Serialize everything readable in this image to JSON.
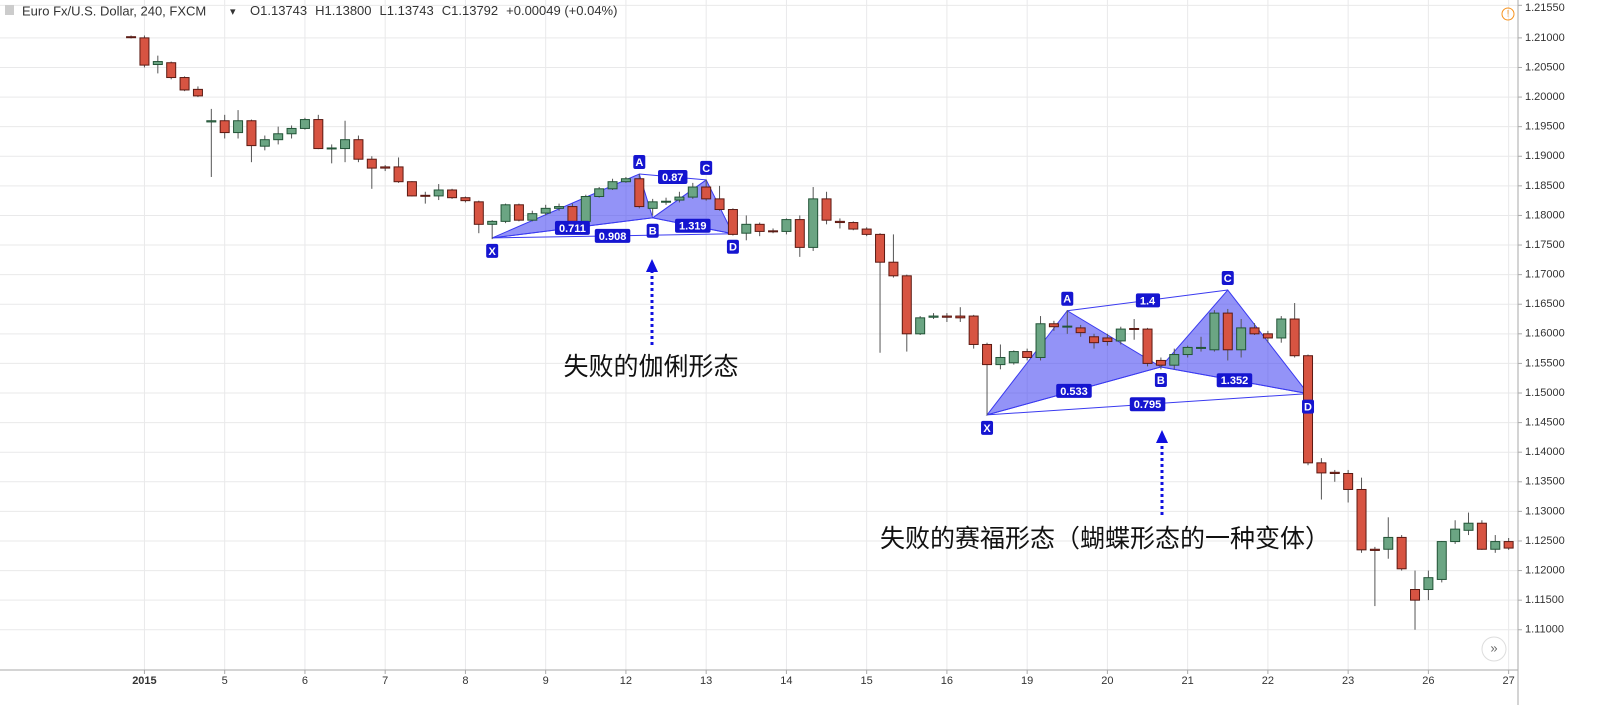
{
  "header": {
    "symbol": "Euro Fx/U.S. Dollar, 240, FXCM",
    "quote": [
      {
        "key": "O",
        "value": "1.13743"
      },
      {
        "key": "H",
        "value": "1.13800"
      },
      {
        "key": "L",
        "value": "1.13743"
      },
      {
        "key": "C",
        "value": "1.13792"
      }
    ],
    "change": "+0.00049 (+0.04%)"
  },
  "chart_data": {
    "type": "candlestick",
    "up_color": "#6ba583",
    "down_color": "#d75442",
    "pattern_color": "#3a3af0",
    "grid": true,
    "x": [
      0,
      1,
      2,
      3,
      4,
      5,
      6,
      7,
      8,
      9,
      10,
      11,
      12,
      13,
      14,
      15,
      16,
      17,
      18,
      19,
      20,
      21,
      22,
      23,
      24,
      25,
      26,
      27,
      28,
      29,
      30,
      31,
      32,
      33,
      34,
      35,
      36,
      37,
      38,
      39,
      40,
      41,
      42,
      43,
      44,
      45,
      46,
      47,
      48,
      49,
      50,
      51,
      52,
      53,
      54,
      55,
      56,
      57,
      58,
      59,
      60,
      61,
      62,
      63,
      64,
      65,
      66,
      67,
      68,
      69,
      70,
      71,
      72,
      73,
      74,
      75,
      76,
      77,
      78,
      79,
      80,
      81,
      82,
      83,
      84,
      85,
      86,
      87,
      88,
      89,
      90,
      91,
      92,
      93,
      94,
      95,
      96,
      97,
      98,
      99,
      100,
      101,
      102,
      103
    ],
    "open": [
      1.2102,
      1.21,
      1.2055,
      1.2058,
      1.2033,
      1.2013,
      1.1958,
      1.196,
      1.194,
      1.196,
      1.1917,
      1.1928,
      1.1938,
      1.1947,
      1.1962,
      1.1913,
      1.1913,
      1.1928,
      1.1895,
      1.1882,
      1.1882,
      1.1857,
      1.1834,
      1.1833,
      1.1843,
      1.183,
      1.1823,
      1.1785,
      1.179,
      1.1818,
      1.1792,
      1.1804,
      1.1812,
      1.1815,
      1.179,
      1.1832,
      1.1845,
      1.1857,
      1.1862,
      1.1812,
      1.1823,
      1.1826,
      1.1831,
      1.1848,
      1.1828,
      1.181,
      1.177,
      1.1785,
      1.1774,
      1.1773,
      1.1793,
      1.1746,
      1.1828,
      1.179,
      1.1788,
      1.1777,
      1.1768,
      1.1721,
      1.1698,
      1.16,
      1.1628,
      1.163,
      1.163,
      1.163,
      1.1582,
      1.1548,
      1.1551,
      1.157,
      1.156,
      1.1617,
      1.1612,
      1.161,
      1.1595,
      1.1593,
      1.1588,
      1.1609,
      1.1608,
      1.1555,
      1.1547,
      1.1565,
      1.1576,
      1.1573,
      1.1635,
      1.1573,
      1.161,
      1.16,
      1.1593,
      1.1625,
      1.1563,
      1.1382,
      1.1366,
      1.1364,
      1.1337,
      1.1236,
      1.1236,
      1.1256,
      1.1168,
      1.1168,
      1.1185,
      1.1249,
      1.1268,
      1.128,
      1.1236,
      1.1249
    ],
    "high": [
      1.2104,
      1.2104,
      1.207,
      1.206,
      1.2035,
      1.2018,
      1.198,
      1.197,
      1.1978,
      1.1962,
      1.1935,
      1.195,
      1.1952,
      1.1965,
      1.197,
      1.192,
      1.196,
      1.1935,
      1.19,
      1.1885,
      1.1898,
      1.1858,
      1.184,
      1.1853,
      1.1845,
      1.1832,
      1.1825,
      1.1792,
      1.182,
      1.182,
      1.1808,
      1.1818,
      1.182,
      1.182,
      1.1835,
      1.1848,
      1.1862,
      1.1865,
      1.187,
      1.1828,
      1.183,
      1.184,
      1.1855,
      1.186,
      1.185,
      1.1812,
      1.18,
      1.1788,
      1.1778,
      1.1795,
      1.18,
      1.1848,
      1.184,
      1.1795,
      1.179,
      1.178,
      1.177,
      1.1768,
      1.17,
      1.163,
      1.1635,
      1.1635,
      1.1645,
      1.1632,
      1.1585,
      1.1582,
      1.1572,
      1.1575,
      1.163,
      1.1622,
      1.164,
      1.1615,
      1.16,
      1.16,
      1.1612,
      1.1625,
      1.161,
      1.156,
      1.1575,
      1.158,
      1.1595,
      1.164,
      1.1642,
      1.1625,
      1.1618,
      1.1605,
      1.163,
      1.1652,
      1.1565,
      1.139,
      1.137,
      1.137,
      1.1357,
      1.124,
      1.129,
      1.126,
      1.12,
      1.12,
      1.125,
      1.1285,
      1.1298,
      1.1285,
      1.126,
      1.1255
    ],
    "low": [
      1.2099,
      1.205,
      1.204,
      1.203,
      1.201,
      1.2,
      1.1865,
      1.193,
      1.193,
      1.189,
      1.191,
      1.192,
      1.193,
      1.1945,
      1.1912,
      1.1888,
      1.189,
      1.189,
      1.1845,
      1.1875,
      1.1855,
      1.1832,
      1.182,
      1.1826,
      1.1828,
      1.1822,
      1.177,
      1.176,
      1.1787,
      1.179,
      1.179,
      1.18,
      1.1808,
      1.1788,
      1.1788,
      1.183,
      1.1843,
      1.1855,
      1.1812,
      1.18,
      1.1818,
      1.1822,
      1.1828,
      1.1825,
      1.1808,
      1.1766,
      1.1758,
      1.1765,
      1.177,
      1.1768,
      1.173,
      1.174,
      1.1785,
      1.1778,
      1.1775,
      1.1765,
      1.1568,
      1.1695,
      1.157,
      1.1598,
      1.1625,
      1.162,
      1.162,
      1.1575,
      1.1462,
      1.154,
      1.1548,
      1.1555,
      1.1555,
      1.1605,
      1.16,
      1.1595,
      1.1575,
      1.158,
      1.1582,
      1.159,
      1.1545,
      1.154,
      1.154,
      1.156,
      1.157,
      1.157,
      1.1555,
      1.156,
      1.1598,
      1.1585,
      1.1585,
      1.156,
      1.1378,
      1.132,
      1.135,
      1.1315,
      1.123,
      1.114,
      1.122,
      1.12,
      1.11,
      1.115,
      1.118,
      1.1245,
      1.126,
      1.1235,
      1.123,
      1.1235
    ],
    "close": [
      1.2101,
      1.2054,
      1.206,
      1.2033,
      1.2012,
      1.2002,
      1.196,
      1.194,
      1.196,
      1.1918,
      1.1928,
      1.1938,
      1.1947,
      1.1962,
      1.1913,
      1.1914,
      1.1928,
      1.1895,
      1.188,
      1.188,
      1.1857,
      1.1833,
      1.1833,
      1.1843,
      1.183,
      1.1825,
      1.1785,
      1.179,
      1.1818,
      1.1792,
      1.1803,
      1.1812,
      1.1815,
      1.179,
      1.1832,
      1.1845,
      1.1857,
      1.1862,
      1.1815,
      1.1823,
      1.1824,
      1.1831,
      1.1848,
      1.1828,
      1.181,
      1.1768,
      1.1785,
      1.1773,
      1.1773,
      1.1793,
      1.1746,
      1.1828,
      1.1792,
      1.1788,
      1.1777,
      1.1768,
      1.1721,
      1.1698,
      1.16,
      1.1627,
      1.163,
      1.1628,
      1.1627,
      1.1582,
      1.1548,
      1.156,
      1.157,
      1.156,
      1.1617,
      1.1612,
      1.1613,
      1.1602,
      1.1585,
      1.1587,
      1.1608,
      1.1608,
      1.155,
      1.1547,
      1.1565,
      1.1577,
      1.1577,
      1.1635,
      1.1573,
      1.161,
      1.16,
      1.1593,
      1.1625,
      1.1563,
      1.1382,
      1.1365,
      1.1364,
      1.1337,
      1.1235,
      1.1234,
      1.1256,
      1.1203,
      1.115,
      1.1188,
      1.1249,
      1.127,
      1.128,
      1.1236,
      1.1249,
      1.1238
    ],
    "xlim": [
      -9.8,
      103.7
    ],
    "xticks": [
      {
        "value": 1,
        "label": "2015"
      },
      {
        "value": 7,
        "label": "5"
      },
      {
        "value": 13,
        "label": "6"
      },
      {
        "value": 19,
        "label": "7"
      },
      {
        "value": 25,
        "label": "8"
      },
      {
        "value": 31,
        "label": "9"
      },
      {
        "value": 37,
        "label": "12"
      },
      {
        "value": 43,
        "label": "13"
      },
      {
        "value": 49,
        "label": "14"
      },
      {
        "value": 55,
        "label": "15"
      },
      {
        "value": 61,
        "label": "16"
      },
      {
        "value": 67,
        "label": "19"
      },
      {
        "value": 73,
        "label": "20"
      },
      {
        "value": 79,
        "label": "21"
      },
      {
        "value": 85,
        "label": "22"
      },
      {
        "value": 91,
        "label": "23"
      },
      {
        "value": 97,
        "label": "26"
      },
      {
        "value": 103,
        "label": "27"
      }
    ],
    "ylim": [
      1.1032,
      1.2164
    ],
    "yticks": [
      {
        "value": 1.11,
        "label": "1.11000"
      },
      {
        "value": 1.115,
        "label": "1.11500"
      },
      {
        "value": 1.12,
        "label": "1.12000"
      },
      {
        "value": 1.125,
        "label": "1.12500"
      },
      {
        "value": 1.13,
        "label": "1.13000"
      },
      {
        "value": 1.135,
        "label": "1.13500"
      },
      {
        "value": 1.14,
        "label": "1.14000"
      },
      {
        "value": 1.145,
        "label": "1.14500"
      },
      {
        "value": 1.15,
        "label": "1.15000"
      },
      {
        "value": 1.155,
        "label": "1.15500"
      },
      {
        "value": 1.16,
        "label": "1.16000"
      },
      {
        "value": 1.165,
        "label": "1.16500"
      },
      {
        "value": 1.17,
        "label": "1.17000"
      },
      {
        "value": 1.175,
        "label": "1.17500"
      },
      {
        "value": 1.18,
        "label": "1.18000"
      },
      {
        "value": 1.185,
        "label": "1.18500"
      },
      {
        "value": 1.19,
        "label": "1.19000"
      },
      {
        "value": 1.195,
        "label": "1.19500"
      },
      {
        "value": 1.2,
        "label": "1.20000"
      },
      {
        "value": 1.205,
        "label": "1.20500"
      },
      {
        "value": 1.21,
        "label": "1.21000"
      },
      {
        "value": 1.2155,
        "label": "1.21550"
      }
    ],
    "patterns": [
      {
        "points": [
          {
            "label": "X",
            "x": 27,
            "y": 1.1762
          },
          {
            "label": "A",
            "x": 38,
            "y": 1.187
          },
          {
            "label": "B",
            "x": 39,
            "y": 1.1796
          },
          {
            "label": "C",
            "x": 43,
            "y": 1.186
          },
          {
            "label": "D",
            "x": 45,
            "y": 1.1769
          }
        ],
        "ratios": [
          0.711,
          0.908,
          0.87,
          1.319
        ]
      },
      {
        "points": [
          {
            "label": "X",
            "x": 64,
            "y": 1.1463
          },
          {
            "label": "A",
            "x": 70,
            "y": 1.1639
          },
          {
            "label": "B",
            "x": 77,
            "y": 1.1544
          },
          {
            "label": "C",
            "x": 82,
            "y": 1.1674
          },
          {
            "label": "D",
            "x": 88,
            "y": 1.1499
          }
        ],
        "ratios": [
          0.533,
          0.795,
          1.4,
          1.352
        ]
      }
    ],
    "annotations": [
      "失败的伽俐形态",
      "失败的赛福形态（蝴蝶形态的一种变体）"
    ]
  }
}
